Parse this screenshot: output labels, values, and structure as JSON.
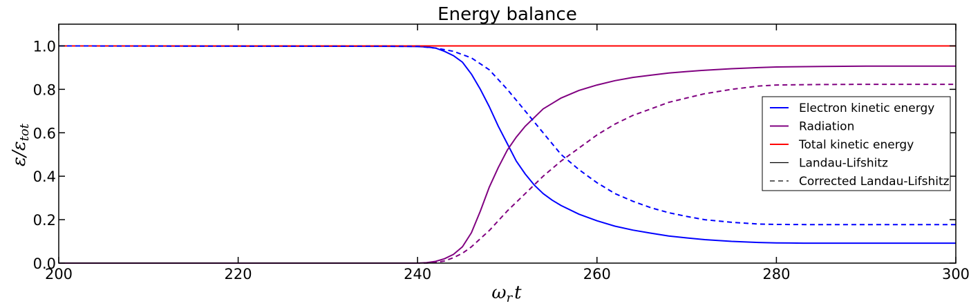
{
  "chart_data": {
    "type": "line",
    "title": "Energy balance",
    "xlabel": {
      "main": "ω",
      "sub": "r",
      "tail": "t"
    },
    "ylabel": {
      "num": "ε",
      "slash": "/",
      "den": "ε",
      "sub": "tot"
    },
    "xlim": [
      200,
      300
    ],
    "ylim": [
      0,
      1.1
    ],
    "xticks": [
      200,
      220,
      240,
      260,
      280,
      300
    ],
    "xtick_labels": [
      "200",
      "220",
      "240",
      "260",
      "280",
      "300"
    ],
    "yticks": [
      0.0,
      0.2,
      0.4,
      0.6,
      0.8,
      1.0
    ],
    "ytick_labels": [
      "0.0",
      "0.2",
      "0.4",
      "0.6",
      "0.8",
      "1.0"
    ],
    "grid": false,
    "legend_position": "right",
    "legend": [
      {
        "label": "Electron kinetic energy",
        "color": "#0000ff",
        "style": "solid"
      },
      {
        "label": "Radiation",
        "color": "#800080",
        "style": "solid"
      },
      {
        "label": "Total kinetic energy",
        "color": "#ff0000",
        "style": "solid"
      },
      {
        "label": "Landau-Lifshitz",
        "color": "#000000",
        "style": "solid"
      },
      {
        "label": "Corrected Landau-Lifshitz",
        "color": "#000000",
        "style": "dashed"
      }
    ],
    "series": [
      {
        "name": "Electron kinetic energy (Landau-Lifshitz)",
        "color": "#0000ff",
        "style": "solid",
        "x": [
          200,
          238,
          240,
          241,
          242,
          243,
          244,
          245,
          246,
          247,
          248,
          249,
          250,
          251,
          252,
          253,
          254,
          255,
          256,
          258,
          260,
          262,
          264,
          266,
          268,
          270,
          272,
          275,
          278,
          280,
          283,
          290,
          300
        ],
        "y": [
          1.0,
          0.998,
          0.997,
          0.995,
          0.99,
          0.975,
          0.955,
          0.925,
          0.87,
          0.8,
          0.72,
          0.63,
          0.55,
          0.47,
          0.41,
          0.36,
          0.32,
          0.29,
          0.265,
          0.225,
          0.195,
          0.17,
          0.152,
          0.138,
          0.125,
          0.116,
          0.108,
          0.1,
          0.095,
          0.093,
          0.092,
          0.092,
          0.092
        ]
      },
      {
        "name": "Radiation (Landau-Lifshitz)",
        "color": "#800080",
        "style": "solid",
        "x": [
          200,
          240,
          241,
          242,
          243,
          244,
          245,
          246,
          247,
          248,
          249,
          250,
          251,
          252,
          253,
          254,
          255,
          256,
          258,
          260,
          262,
          264,
          266,
          268,
          270,
          272,
          275,
          278,
          280,
          285,
          290,
          300
        ],
        "y": [
          0.0,
          0.0,
          0.002,
          0.008,
          0.02,
          0.04,
          0.075,
          0.14,
          0.24,
          0.35,
          0.44,
          0.52,
          0.58,
          0.63,
          0.67,
          0.71,
          0.735,
          0.76,
          0.795,
          0.82,
          0.84,
          0.855,
          0.865,
          0.875,
          0.882,
          0.888,
          0.895,
          0.9,
          0.903,
          0.905,
          0.907,
          0.907
        ]
      },
      {
        "name": "Total kinetic energy (Landau-Lifshitz)",
        "color": "#ff0000",
        "style": "solid",
        "x": [
          200,
          300
        ],
        "y": [
          1.0,
          1.0
        ]
      },
      {
        "name": "Electron kinetic energy (Corrected Landau-Lifshitz)",
        "color": "#0000ff",
        "style": "dashed",
        "x": [
          200,
          240,
          242,
          244,
          246,
          248,
          250,
          252,
          254,
          256,
          258,
          260,
          262,
          264,
          266,
          268,
          270,
          272,
          275,
          278,
          280,
          285,
          290,
          300
        ],
        "y": [
          1.0,
          0.998,
          0.99,
          0.975,
          0.945,
          0.89,
          0.8,
          0.7,
          0.6,
          0.5,
          0.43,
          0.37,
          0.32,
          0.285,
          0.255,
          0.232,
          0.215,
          0.2,
          0.188,
          0.18,
          0.178,
          0.177,
          0.177,
          0.177
        ]
      },
      {
        "name": "Radiation (Corrected Landau-Lifshitz)",
        "color": "#800080",
        "style": "dashed",
        "x": [
          200,
          241,
          242,
          243,
          244,
          245,
          246,
          248,
          250,
          252,
          254,
          256,
          258,
          260,
          262,
          264,
          266,
          268,
          270,
          272,
          275,
          278,
          280,
          285,
          290,
          300
        ],
        "y": [
          0.0,
          0.0,
          0.003,
          0.01,
          0.025,
          0.045,
          0.075,
          0.15,
          0.24,
          0.32,
          0.4,
          0.47,
          0.53,
          0.59,
          0.64,
          0.68,
          0.71,
          0.74,
          0.76,
          0.78,
          0.8,
          0.815,
          0.82,
          0.822,
          0.823,
          0.823
        ]
      }
    ]
  }
}
